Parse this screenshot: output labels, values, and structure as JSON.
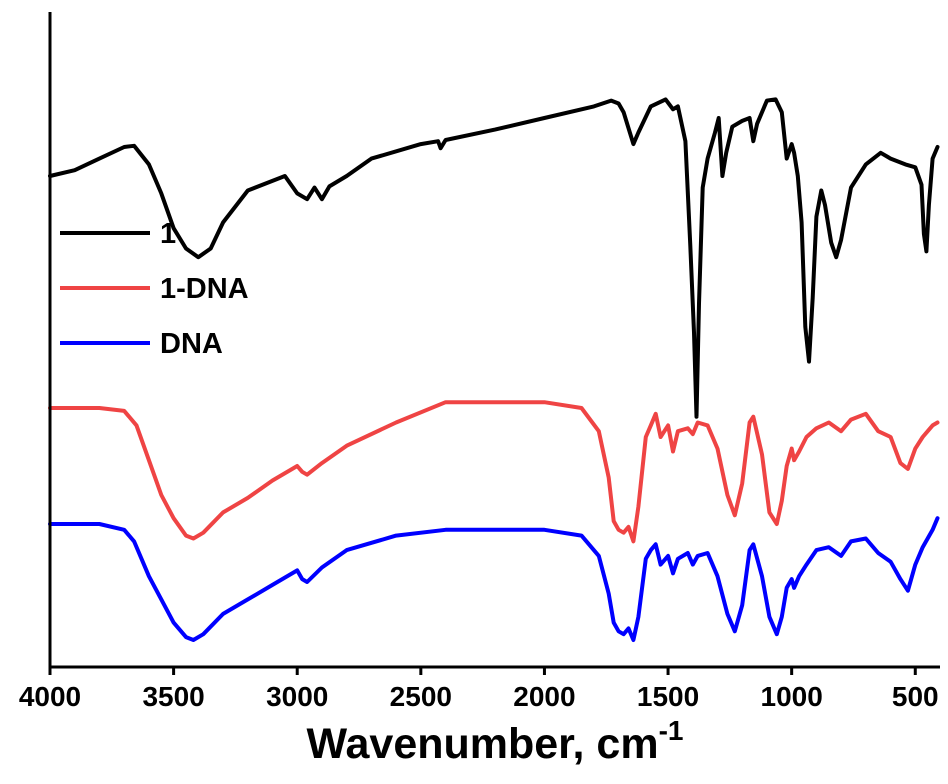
{
  "chart_data": {
    "type": "line",
    "title": "",
    "xlabel": "Wavenumber, cm",
    "xlabel_superscript": "-1",
    "ylabel": "",
    "xlim": [
      4000,
      400
    ],
    "x_reversed": true,
    "xticks": [
      4000,
      3500,
      3000,
      2500,
      2000,
      1500,
      1000,
      500
    ],
    "ylim": [
      0,
      10
    ],
    "y_ticks_shown": false,
    "grid": false,
    "legend_position": "left",
    "series": [
      {
        "name": "1",
        "color": "#000000",
        "points": [
          [
            4000,
            8.0
          ],
          [
            3900,
            8.1
          ],
          [
            3800,
            8.3
          ],
          [
            3700,
            8.5
          ],
          [
            3660,
            8.52
          ],
          [
            3600,
            8.2
          ],
          [
            3550,
            7.7
          ],
          [
            3500,
            7.1
          ],
          [
            3450,
            6.75
          ],
          [
            3400,
            6.6
          ],
          [
            3350,
            6.75
          ],
          [
            3300,
            7.2
          ],
          [
            3200,
            7.75
          ],
          [
            3050,
            8.0
          ],
          [
            3000,
            7.7
          ],
          [
            2960,
            7.6
          ],
          [
            2930,
            7.8
          ],
          [
            2900,
            7.6
          ],
          [
            2870,
            7.82
          ],
          [
            2800,
            8.0
          ],
          [
            2700,
            8.3
          ],
          [
            2500,
            8.55
          ],
          [
            2430,
            8.6
          ],
          [
            2420,
            8.48
          ],
          [
            2400,
            8.62
          ],
          [
            2200,
            8.8
          ],
          [
            2000,
            9.0
          ],
          [
            1800,
            9.2
          ],
          [
            1730,
            9.3
          ],
          [
            1700,
            9.25
          ],
          [
            1680,
            9.1
          ],
          [
            1640,
            8.55
          ],
          [
            1620,
            8.75
          ],
          [
            1570,
            9.2
          ],
          [
            1510,
            9.32
          ],
          [
            1480,
            9.15
          ],
          [
            1460,
            9.2
          ],
          [
            1430,
            8.6
          ],
          [
            1410,
            6.8
          ],
          [
            1395,
            5.3
          ],
          [
            1385,
            3.85
          ],
          [
            1375,
            5.8
          ],
          [
            1360,
            7.8
          ],
          [
            1340,
            8.3
          ],
          [
            1310,
            8.75
          ],
          [
            1295,
            9.0
          ],
          [
            1280,
            8.0
          ],
          [
            1265,
            8.4
          ],
          [
            1240,
            8.85
          ],
          [
            1200,
            8.95
          ],
          [
            1170,
            9.0
          ],
          [
            1155,
            8.6
          ],
          [
            1140,
            8.9
          ],
          [
            1100,
            9.3
          ],
          [
            1065,
            9.32
          ],
          [
            1040,
            9.1
          ],
          [
            1020,
            8.3
          ],
          [
            1000,
            8.55
          ],
          [
            990,
            8.4
          ],
          [
            975,
            8.0
          ],
          [
            960,
            7.2
          ],
          [
            945,
            5.4
          ],
          [
            930,
            4.8
          ],
          [
            915,
            5.9
          ],
          [
            900,
            7.3
          ],
          [
            880,
            7.75
          ],
          [
            865,
            7.5
          ],
          [
            840,
            6.85
          ],
          [
            820,
            6.6
          ],
          [
            800,
            6.9
          ],
          [
            760,
            7.8
          ],
          [
            700,
            8.2
          ],
          [
            640,
            8.4
          ],
          [
            600,
            8.3
          ],
          [
            540,
            8.2
          ],
          [
            500,
            8.15
          ],
          [
            475,
            7.85
          ],
          [
            465,
            7.0
          ],
          [
            455,
            6.7
          ],
          [
            445,
            7.5
          ],
          [
            430,
            8.3
          ],
          [
            410,
            8.5
          ]
        ]
      },
      {
        "name": "1-DNA",
        "color": "#ef4444",
        "points": [
          [
            4000,
            4.0
          ],
          [
            3800,
            4.0
          ],
          [
            3700,
            3.95
          ],
          [
            3650,
            3.7
          ],
          [
            3600,
            3.1
          ],
          [
            3550,
            2.5
          ],
          [
            3500,
            2.1
          ],
          [
            3450,
            1.8
          ],
          [
            3420,
            1.75
          ],
          [
            3380,
            1.85
          ],
          [
            3300,
            2.2
          ],
          [
            3200,
            2.45
          ],
          [
            3100,
            2.75
          ],
          [
            3000,
            3.0
          ],
          [
            2980,
            2.9
          ],
          [
            2960,
            2.85
          ],
          [
            2900,
            3.05
          ],
          [
            2800,
            3.35
          ],
          [
            2600,
            3.75
          ],
          [
            2400,
            4.1
          ],
          [
            2200,
            4.1
          ],
          [
            2000,
            4.1
          ],
          [
            1850,
            4.0
          ],
          [
            1780,
            3.6
          ],
          [
            1740,
            2.8
          ],
          [
            1720,
            2.05
          ],
          [
            1700,
            1.9
          ],
          [
            1680,
            1.85
          ],
          [
            1660,
            1.95
          ],
          [
            1640,
            1.7
          ],
          [
            1620,
            2.3
          ],
          [
            1590,
            3.5
          ],
          [
            1570,
            3.7
          ],
          [
            1550,
            3.9
          ],
          [
            1530,
            3.5
          ],
          [
            1500,
            3.7
          ],
          [
            1480,
            3.25
          ],
          [
            1460,
            3.6
          ],
          [
            1420,
            3.65
          ],
          [
            1400,
            3.55
          ],
          [
            1380,
            3.75
          ],
          [
            1340,
            3.7
          ],
          [
            1300,
            3.3
          ],
          [
            1260,
            2.5
          ],
          [
            1230,
            2.15
          ],
          [
            1200,
            2.7
          ],
          [
            1170,
            3.75
          ],
          [
            1155,
            3.85
          ],
          [
            1120,
            3.2
          ],
          [
            1090,
            2.2
          ],
          [
            1060,
            2.0
          ],
          [
            1040,
            2.4
          ],
          [
            1020,
            3.0
          ],
          [
            1000,
            3.3
          ],
          [
            990,
            3.1
          ],
          [
            970,
            3.25
          ],
          [
            940,
            3.5
          ],
          [
            900,
            3.65
          ],
          [
            850,
            3.75
          ],
          [
            800,
            3.6
          ],
          [
            760,
            3.8
          ],
          [
            700,
            3.9
          ],
          [
            650,
            3.6
          ],
          [
            600,
            3.5
          ],
          [
            560,
            3.05
          ],
          [
            530,
            2.95
          ],
          [
            500,
            3.3
          ],
          [
            470,
            3.5
          ],
          [
            430,
            3.7
          ],
          [
            410,
            3.75
          ]
        ]
      },
      {
        "name": "DNA",
        "color": "#0000ff",
        "points": [
          [
            4000,
            2.0
          ],
          [
            3800,
            2.0
          ],
          [
            3700,
            1.9
          ],
          [
            3660,
            1.7
          ],
          [
            3600,
            1.1
          ],
          [
            3550,
            0.7
          ],
          [
            3500,
            0.3
          ],
          [
            3450,
            0.05
          ],
          [
            3420,
            0.0
          ],
          [
            3380,
            0.1
          ],
          [
            3300,
            0.45
          ],
          [
            3200,
            0.7
          ],
          [
            3100,
            0.95
          ],
          [
            3000,
            1.2
          ],
          [
            2980,
            1.05
          ],
          [
            2960,
            1.0
          ],
          [
            2900,
            1.25
          ],
          [
            2800,
            1.55
          ],
          [
            2600,
            1.8
          ],
          [
            2400,
            1.9
          ],
          [
            2200,
            1.9
          ],
          [
            2000,
            1.9
          ],
          [
            1850,
            1.8
          ],
          [
            1780,
            1.45
          ],
          [
            1740,
            0.8
          ],
          [
            1720,
            0.3
          ],
          [
            1700,
            0.15
          ],
          [
            1680,
            0.1
          ],
          [
            1660,
            0.2
          ],
          [
            1640,
            0.0
          ],
          [
            1620,
            0.4
          ],
          [
            1590,
            1.4
          ],
          [
            1570,
            1.55
          ],
          [
            1550,
            1.65
          ],
          [
            1530,
            1.3
          ],
          [
            1500,
            1.45
          ],
          [
            1480,
            1.15
          ],
          [
            1460,
            1.4
          ],
          [
            1420,
            1.5
          ],
          [
            1400,
            1.3
          ],
          [
            1380,
            1.45
          ],
          [
            1340,
            1.5
          ],
          [
            1300,
            1.1
          ],
          [
            1260,
            0.45
          ],
          [
            1230,
            0.15
          ],
          [
            1200,
            0.6
          ],
          [
            1170,
            1.55
          ],
          [
            1155,
            1.65
          ],
          [
            1120,
            1.1
          ],
          [
            1090,
            0.4
          ],
          [
            1060,
            0.1
          ],
          [
            1040,
            0.4
          ],
          [
            1020,
            0.9
          ],
          [
            1000,
            1.05
          ],
          [
            990,
            0.9
          ],
          [
            970,
            1.1
          ],
          [
            940,
            1.3
          ],
          [
            900,
            1.55
          ],
          [
            850,
            1.6
          ],
          [
            800,
            1.45
          ],
          [
            760,
            1.7
          ],
          [
            700,
            1.75
          ],
          [
            650,
            1.5
          ],
          [
            600,
            1.35
          ],
          [
            560,
            1.05
          ],
          [
            530,
            0.85
          ],
          [
            500,
            1.3
          ],
          [
            470,
            1.6
          ],
          [
            430,
            1.9
          ],
          [
            410,
            2.1
          ]
        ]
      }
    ]
  }
}
